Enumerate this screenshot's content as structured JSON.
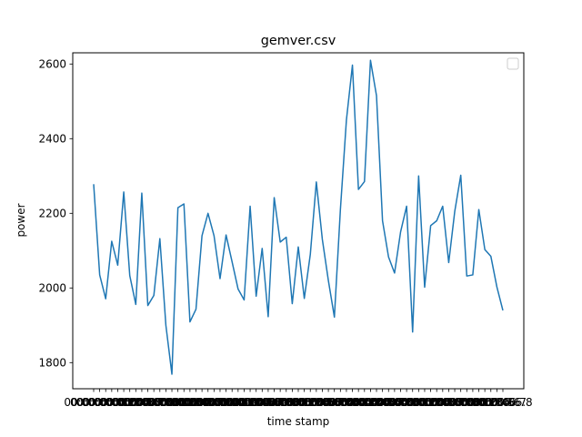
{
  "chart_data": {
    "type": "line",
    "title": "gemver.csv",
    "xlabel": "time stamp",
    "ylabel": "power",
    "ylim": [
      1730,
      2630
    ],
    "yticks": [
      1800,
      2000,
      2200,
      2400,
      2600
    ],
    "grid": false,
    "legend": {
      "placement": "upper-right",
      "entries": []
    },
    "line_color": "#1f77b4",
    "x_tick_labels": [
      "00:00:00.0",
      "00:00:00.1",
      "00:00:00.2",
      "00:00:00.3",
      "00:00:00.4",
      "00:00:00.5",
      "00:00:00.6",
      "00:00:00.7",
      "00:00:00.8",
      "00:00:00.9",
      "00:00:01.0",
      "00:00:01.1",
      "00:00:01.2",
      "00:00:01.3",
      "00:00:01.4",
      "00:00:01.5",
      "00:00:01.6",
      "00:00:01.7",
      "00:00:01.8",
      "00:00:01.9",
      "00:00:02.0",
      "00:00:02.1",
      "00:00:02.2",
      "00:00:02.3",
      "00:00:02.4",
      "00:00:02.5",
      "00:00:02.6",
      "00:00:02.7",
      "00:00:02.8",
      "00:00:02.9",
      "00:00:03.0",
      "00:00:03.1",
      "00:00:03.2",
      "00:00:03.3",
      "00:00:03.4",
      "00:00:03.5",
      "00:00:03.6",
      "00:00:03.7",
      "00:00:03.8",
      "00:00:03.9",
      "00:00:04.0",
      "00:00:04.1",
      "00:00:04.2",
      "00:00:04.3",
      "00:00:04.4",
      "00:00:04.5",
      "00:00:04.6",
      "00:00:04.7",
      "00:00:04.8",
      "00:00:04.9",
      "00:00:05.0",
      "00:00:05.1",
      "00:00:05.2",
      "00:00:05.3",
      "00:00:05.4",
      "00:00:05.5",
      "00:00:05.6",
      "00:00:05.7",
      "00:00:05.8",
      "00:00:05.9",
      "00:00:06.0",
      "00:00:06.1",
      "00:00:06.2",
      "00:00:06.3",
      "00:00:06.4",
      "00:00:06.5",
      "00:00:06.6",
      "00:00:06.7",
      "00:00:06.8"
    ],
    "series": [
      {
        "values": [
          2278,
          2035,
          1971,
          2125,
          2061,
          2257,
          2033,
          1956,
          2254,
          1953,
          1980,
          2132,
          1900,
          1769,
          2215,
          2225,
          1909,
          1943,
          2140,
          2200,
          2140,
          2025,
          2142,
          2070,
          1997,
          1968,
          2219,
          1978,
          2106,
          1923,
          2242,
          2123,
          2136,
          1958,
          2110,
          1972,
          2090,
          2284,
          2130,
          2020,
          1922,
          2210,
          2450,
          2597,
          2264,
          2285,
          2610,
          2515,
          2180,
          2083,
          2040,
          2150,
          2219,
          1882,
          2300,
          2002,
          2167,
          2180,
          2219,
          2068,
          2205,
          2302,
          2032,
          2035,
          2210,
          2103,
          2085,
          2003,
          1940
        ]
      }
    ]
  }
}
